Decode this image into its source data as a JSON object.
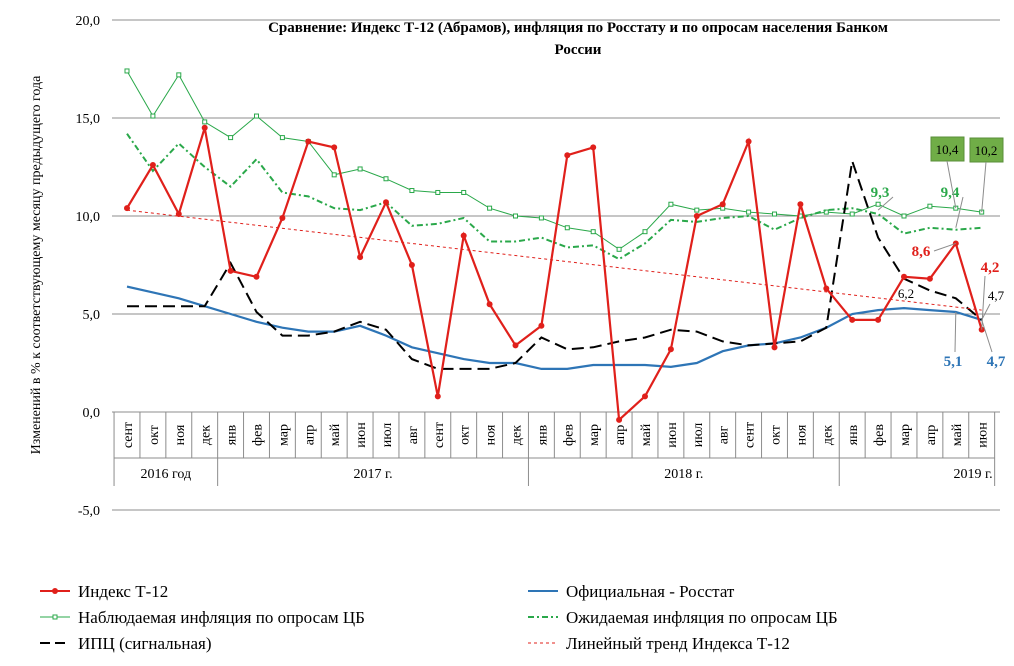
{
  "chart_data": {
    "type": "line",
    "title_line1": "Сравнение: Индекс Т-12 (Абрамов), инфляция по Росстату и по опросам населения Банком",
    "title_line2": "России",
    "ylabel": "Изменений в % к соответствующему месяцу предыдущего года",
    "ylim": [
      -5,
      20
    ],
    "yticks": [
      "-5,0",
      "0,0",
      "5,0",
      "10,0",
      "15,0",
      "20,0"
    ],
    "ytick_values": [
      -5,
      0,
      5,
      10,
      15,
      20
    ],
    "months": [
      "сент",
      "окт",
      "ноя",
      "дек",
      "янв",
      "фев",
      "мар",
      "апр",
      "май",
      "июн",
      "июл",
      "авг",
      "сент",
      "окт",
      "ноя",
      "дек",
      "янв",
      "фев",
      "мар",
      "апр",
      "май",
      "июн",
      "июл",
      "авг",
      "сент",
      "окт",
      "ноя",
      "дек",
      "янв",
      "фев",
      "мар",
      "апр",
      "май",
      "июн"
    ],
    "years": [
      {
        "label": "2016 год",
        "start": 0,
        "end": 3
      },
      {
        "label": "2017 г.",
        "start": 4,
        "end": 15
      },
      {
        "label": "2018 г.",
        "start": 16,
        "end": 27
      },
      {
        "label": "2019 г.",
        "start": 28,
        "end": 33
      }
    ],
    "series": [
      {
        "name": "Наблюдаемая инфляция по опросам ЦБ",
        "color": "#2aa84a",
        "style": "solid-marker",
        "values": [
          17.4,
          15.1,
          17.2,
          14.8,
          14.0,
          15.1,
          14.0,
          13.8,
          12.1,
          12.4,
          11.9,
          11.3,
          11.2,
          11.2,
          10.4,
          10.0,
          9.9,
          9.4,
          9.2,
          8.3,
          9.2,
          10.6,
          10.3,
          10.4,
          10.2,
          10.1,
          10.0,
          10.2,
          10.1,
          10.6,
          10.0,
          10.5,
          10.4,
          10.2
        ]
      },
      {
        "name": "Ожидаемая инфляция по опросам ЦБ",
        "color": "#2aa84a",
        "style": "dashdot",
        "values": [
          14.2,
          12.3,
          13.7,
          12.5,
          11.5,
          12.9,
          11.2,
          11.0,
          10.4,
          10.3,
          10.7,
          9.5,
          9.6,
          9.9,
          8.7,
          8.7,
          8.9,
          8.4,
          8.5,
          7.8,
          8.6,
          9.8,
          9.7,
          9.9,
          10.0,
          9.3,
          9.9,
          10.3,
          10.4,
          10.1,
          9.1,
          9.4,
          9.3,
          9.4
        ]
      },
      {
        "name": "Официальная - Росстат",
        "color": "#2e75b6",
        "style": "solid",
        "values": [
          6.4,
          6.1,
          5.8,
          5.4,
          5.0,
          4.6,
          4.3,
          4.1,
          4.1,
          4.4,
          3.9,
          3.3,
          3.0,
          2.7,
          2.5,
          2.5,
          2.2,
          2.2,
          2.4,
          2.4,
          2.4,
          2.3,
          2.5,
          3.1,
          3.4,
          3.5,
          3.8,
          4.3,
          5.0,
          5.2,
          5.3,
          5.2,
          5.1,
          4.7
        ]
      },
      {
        "name": "ИПЦ (сигнальная)",
        "color": "#000000",
        "style": "dashed",
        "values": [
          5.4,
          5.4,
          5.4,
          5.4,
          7.6,
          5.1,
          3.9,
          3.9,
          4.1,
          4.6,
          4.2,
          2.7,
          2.2,
          2.2,
          2.2,
          2.5,
          3.8,
          3.2,
          3.3,
          3.6,
          3.8,
          4.2,
          4.1,
          3.6,
          3.4,
          3.5,
          3.6,
          4.3,
          12.8,
          8.9,
          6.8,
          6.2,
          5.8,
          4.7
        ]
      },
      {
        "name": "Индекс Т-12",
        "color": "#e0201b",
        "style": "solid-marker",
        "values": [
          10.4,
          12.6,
          10.1,
          14.5,
          7.2,
          6.9,
          9.9,
          13.8,
          13.5,
          7.9,
          10.7,
          7.5,
          0.8,
          9.0,
          5.5,
          3.4,
          4.4,
          13.1,
          13.5,
          -0.4,
          0.8,
          3.2,
          10.0,
          10.6,
          13.8,
          3.3,
          10.6,
          6.3,
          4.7,
          4.7,
          6.9,
          6.8,
          8.6,
          4.2
        ]
      },
      {
        "name": "Линейный тренд Индекса Т-12",
        "color": "#e0201b",
        "style": "dotted",
        "values": [
          10.3,
          5.2
        ]
      }
    ],
    "annotations": [
      {
        "text": "9,3",
        "color": "#2aa84a"
      },
      {
        "text": "9,4",
        "color": "#2aa84a"
      },
      {
        "text": "10,4",
        "color": "#000000"
      },
      {
        "text": "10,2",
        "color": "#000000"
      },
      {
        "text": "8,6",
        "color": "#e0201b"
      },
      {
        "text": "4,2",
        "color": "#e0201b"
      },
      {
        "text": "6,2",
        "color": "#000000"
      },
      {
        "text": "4,7",
        "color": "#000000"
      },
      {
        "text": "5,1",
        "color": "#2e75b6"
      },
      {
        "text": "4,7",
        "color": "#2e75b6"
      }
    ],
    "legend": [
      {
        "label": "Индекс Т-12",
        "series": 4
      },
      {
        "label": "Официальная - Росстат",
        "series": 2
      },
      {
        "label": "Наблюдаемая инфляция по опросам ЦБ",
        "series": 0
      },
      {
        "label": "Ожидаемая инфляция по опросам ЦБ",
        "series": 1
      },
      {
        "label": "ИПЦ (сигнальная)",
        "series": 3
      },
      {
        "label": "Линейный тренд Индекса Т-12",
        "series": 5
      }
    ]
  }
}
